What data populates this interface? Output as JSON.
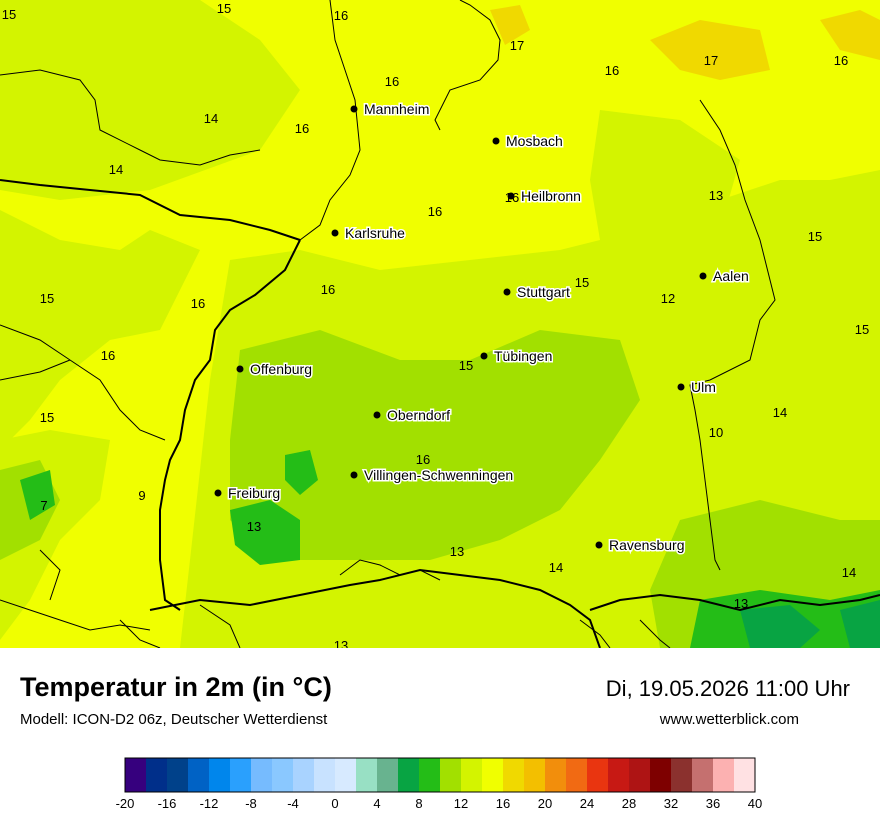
{
  "title": "Temperatur in 2m (in °C)",
  "model": "Modell: ICON-D2 06z, Deutscher Wetterdienst",
  "datetime": "Di, 19.05.2026 11:00 Uhr",
  "website": "www.wetterblick.com",
  "cities": [
    {
      "name": "Mannheim"
    },
    {
      "name": "Mosbach"
    },
    {
      "name": "Heilbronn"
    },
    {
      "name": "Karlsruhe"
    },
    {
      "name": "Stuttgart"
    },
    {
      "name": "Aalen"
    },
    {
      "name": "Tübingen"
    },
    {
      "name": "Offenburg"
    },
    {
      "name": "Ulm"
    },
    {
      "name": "Oberndorf"
    },
    {
      "name": "Villingen-Schwenningen"
    },
    {
      "name": "Freiburg"
    },
    {
      "name": "Ravensburg"
    }
  ],
  "temperature_labels": [
    "15",
    "15",
    "16",
    "17",
    "16",
    "17",
    "16",
    "16",
    "14",
    "16",
    "14",
    "16",
    "13",
    "16",
    "15",
    "15",
    "16",
    "16",
    "12",
    "15",
    "16",
    "15",
    "15",
    "15",
    "14",
    "10",
    "16",
    "9",
    "7",
    "13",
    "14",
    "13",
    "13",
    "14",
    "13"
  ],
  "legend": {
    "colors": [
      "#36007e",
      "#002f8a",
      "#00418a",
      "#0062c5",
      "#0086ec",
      "#2aa0fd",
      "#76bbfe",
      "#8ac8ff",
      "#a9d3ff",
      "#c8e2ff",
      "#d7eaff",
      "#98e0c4",
      "#68b38f",
      "#08a443",
      "#24bd17",
      "#a2e000",
      "#d3f400",
      "#f0ff00",
      "#f0d900",
      "#f3bf00",
      "#f28e0c",
      "#f16a13",
      "#e93510",
      "#c71914",
      "#ae1414",
      "#7e0000",
      "#8b312e",
      "#c5706f",
      "#fcb1b1",
      "#ffe1e3"
    ],
    "ticks": [
      "-20",
      "-16",
      "-12",
      "-8",
      "-4",
      "0",
      "4",
      "8",
      "12",
      "16",
      "20",
      "24",
      "28",
      "32",
      "36",
      "40"
    ]
  }
}
